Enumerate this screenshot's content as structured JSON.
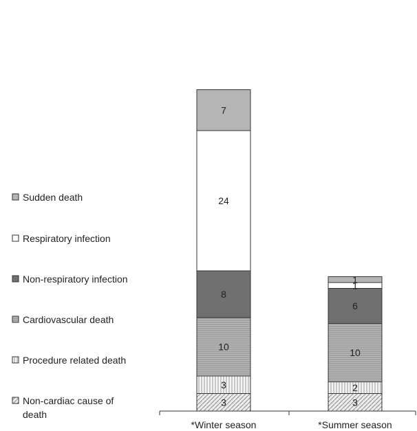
{
  "chart_data": {
    "type": "bar",
    "stacked": true,
    "categories": [
      "*Winter season",
      "*Summer season"
    ],
    "series": [
      {
        "name": "Non-cardiac cause of death",
        "values": [
          3,
          3
        ],
        "fill": "#e8e8e8",
        "pattern": "diagonal-hatch"
      },
      {
        "name": "Procedure related death",
        "values": [
          3,
          2
        ],
        "fill": "#f2f2f2",
        "pattern": "vertical-lines"
      },
      {
        "name": "Cardiovascular death",
        "values": [
          10,
          10
        ],
        "fill": "#a9a9a9",
        "pattern": "horizontal-lines"
      },
      {
        "name": "Non-respiratory infection",
        "values": [
          8,
          6
        ],
        "fill": "#707070",
        "pattern": "solid"
      },
      {
        "name": "Respiratory infection",
        "values": [
          24,
          1
        ],
        "fill": "#ffffff",
        "pattern": "solid"
      },
      {
        "name": "Sudden death",
        "values": [
          7,
          1
        ],
        "fill": "#b5b5b5",
        "pattern": "solid"
      }
    ],
    "legend_order": [
      "Sudden death",
      "Respiratory infection",
      "Non-respiratory infection",
      "Cardiovascular death",
      "Procedure related death",
      "Non-cardiac cause of death"
    ],
    "legend_position": "left",
    "ylim": [
      0,
      55
    ],
    "grid": false,
    "title": "",
    "xlabel": "",
    "ylabel": ""
  }
}
